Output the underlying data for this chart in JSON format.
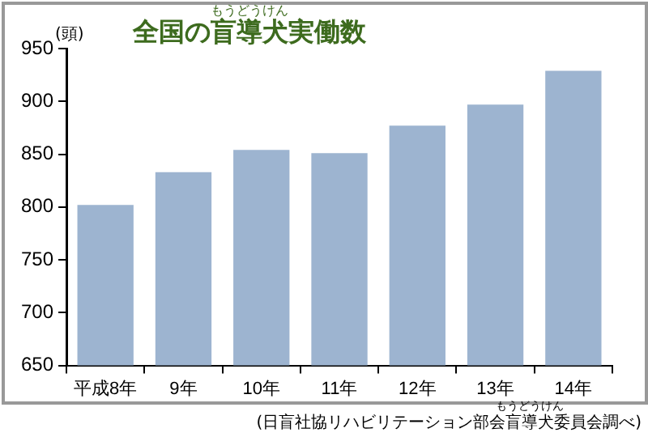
{
  "chart_data": {
    "type": "bar",
    "title": "全国の盲導犬実働数",
    "ylabel": "(頭)",
    "annotations": [
      "もうどうけん",
      "(日盲社協リハビリテーション部会盲導犬委員会調べ)",
      "もうどうけん"
    ],
    "categories": [
      "平成8年",
      "9年",
      "10年",
      "11年",
      "12年",
      "13年",
      "14年"
    ],
    "values": [
      802,
      833,
      854,
      851,
      877,
      897,
      929
    ],
    "color": "#9db4d0",
    "ylim": [
      650,
      950
    ],
    "yticks": [
      650,
      700,
      750,
      800,
      850,
      900,
      950
    ],
    "grid": false,
    "legend": false
  }
}
